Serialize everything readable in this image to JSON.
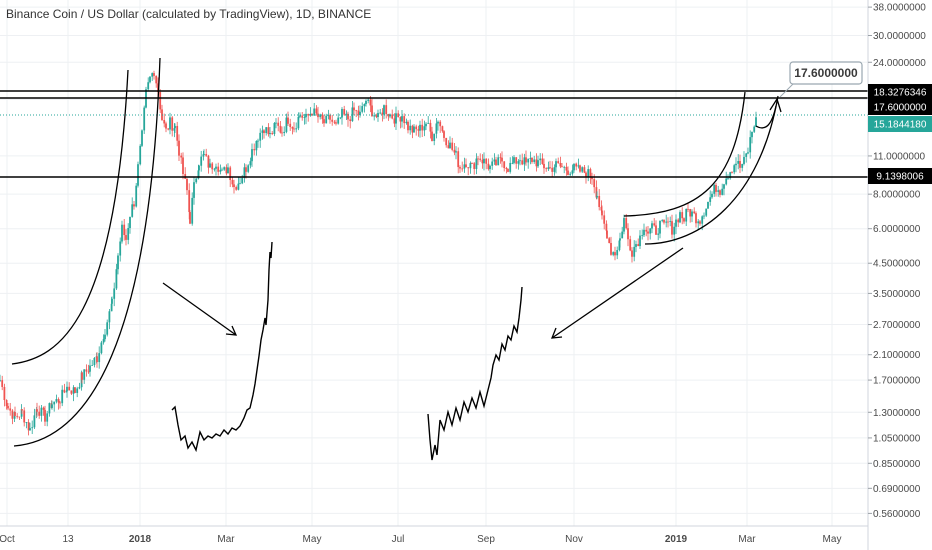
{
  "title": "Binance Coin / US Dollar (calculated by TradingView), 1D, BINANCE",
  "colors": {
    "up": "#26a69a",
    "down": "#ef5350",
    "grid": "#eef0f3",
    "axis_text": "#4a4a4a",
    "current_price_tag": "#26a69a",
    "level_tag": "#000000",
    "drawing": "#000000"
  },
  "chart_data": {
    "type": "candlestick",
    "title": "Binance Coin / US Dollar (calculated by TradingView), 1D, BINANCE",
    "yscale": "log",
    "ylim": [
      0.53,
      39
    ],
    "y_ticks": [
      "38.0000000",
      "30.0000000",
      "24.0000000",
      "17.6000000",
      "11.0000000",
      "8.0000000",
      "6.0000000",
      "4.5000000",
      "3.5000000",
      "2.7000000",
      "2.1000000",
      "1.7000000",
      "1.3000000",
      "1.0500000",
      "0.8500000",
      "0.6900000",
      "0.5600000"
    ],
    "x_ticks": [
      "Oct",
      "13",
      "2018",
      "Mar",
      "May",
      "Jul",
      "Sep",
      "Nov",
      "2019",
      "Mar",
      "May"
    ],
    "x_ticks_bold": [
      "2018",
      "2019"
    ],
    "price_closes": [
      [
        0,
        1.7
      ],
      [
        8,
        1.35
      ],
      [
        15,
        1.25
      ],
      [
        22,
        1.3
      ],
      [
        30,
        1.12
      ],
      [
        37,
        1.35
      ],
      [
        45,
        1.25
      ],
      [
        52,
        1.4
      ],
      [
        60,
        1.45
      ],
      [
        67,
        1.6
      ],
      [
        75,
        1.55
      ],
      [
        82,
        1.75
      ],
      [
        90,
        1.9
      ],
      [
        97,
        2.05
      ],
      [
        105,
        2.6
      ],
      [
        112,
        3.2
      ],
      [
        118,
        4.8
      ],
      [
        122,
        6.0
      ],
      [
        126,
        5.5
      ],
      [
        130,
        6.8
      ],
      [
        134,
        7.5
      ],
      [
        138,
        10.0
      ],
      [
        142,
        13.0
      ],
      [
        146,
        18.5
      ],
      [
        150,
        21.0
      ],
      [
        154,
        22.5
      ],
      [
        158,
        19.0
      ],
      [
        162,
        15.0
      ],
      [
        166,
        13.5
      ],
      [
        170,
        14.5
      ],
      [
        175,
        14.0
      ],
      [
        179,
        11.5
      ],
      [
        183,
        9.5
      ],
      [
        187,
        8.2
      ],
      [
        190,
        6.5
      ],
      [
        194,
        8.5
      ],
      [
        199,
        10.5
      ],
      [
        204,
        11.0
      ],
      [
        210,
        10.0
      ],
      [
        216,
        10.5
      ],
      [
        222,
        9.5
      ],
      [
        228,
        10.0
      ],
      [
        234,
        8.5
      ],
      [
        240,
        9.0
      ],
      [
        246,
        10.0
      ],
      [
        252,
        11.5
      ],
      [
        258,
        13.0
      ],
      [
        264,
        14.0
      ],
      [
        270,
        13.0
      ],
      [
        276,
        14.2
      ],
      [
        282,
        13.5
      ],
      [
        288,
        15.0
      ],
      [
        294,
        14.0
      ],
      [
        300,
        15.5
      ],
      [
        306,
        15.0
      ],
      [
        312,
        16.0
      ],
      [
        318,
        15.2
      ],
      [
        324,
        14.5
      ],
      [
        330,
        15.0
      ],
      [
        336,
        14.0
      ],
      [
        342,
        15.5
      ],
      [
        348,
        15.0
      ],
      [
        354,
        16.0
      ],
      [
        360,
        15.5
      ],
      [
        366,
        17.5
      ],
      [
        372,
        16.0
      ],
      [
        378,
        15.0
      ],
      [
        384,
        16.5
      ],
      [
        390,
        15.5
      ],
      [
        396,
        15.0
      ],
      [
        402,
        15.5
      ],
      [
        408,
        14.0
      ],
      [
        414,
        13.5
      ],
      [
        420,
        13.8
      ],
      [
        426,
        14.5
      ],
      [
        432,
        13.0
      ],
      [
        438,
        15.0
      ],
      [
        444,
        13.0
      ],
      [
        450,
        12.0
      ],
      [
        456,
        11.0
      ],
      [
        460,
        10.0
      ],
      [
        466,
        10.5
      ],
      [
        472,
        10.0
      ],
      [
        478,
        11.0
      ],
      [
        484,
        10.5
      ],
      [
        490,
        10.0
      ],
      [
        496,
        10.3
      ],
      [
        502,
        10.6
      ],
      [
        508,
        10.0
      ],
      [
        514,
        10.4
      ],
      [
        520,
        10.8
      ],
      [
        526,
        10.3
      ],
      [
        532,
        10.7
      ],
      [
        538,
        10.4
      ],
      [
        544,
        10.1
      ],
      [
        550,
        9.9
      ],
      [
        556,
        10.2
      ],
      [
        562,
        10.0
      ],
      [
        568,
        9.8
      ],
      [
        574,
        9.9
      ],
      [
        580,
        9.7
      ],
      [
        586,
        9.6
      ],
      [
        592,
        9.3
      ],
      [
        597,
        8.0
      ],
      [
        602,
        6.5
      ],
      [
        607,
        5.8
      ],
      [
        611,
        5.0
      ],
      [
        615,
        4.9
      ],
      [
        620,
        5.5
      ],
      [
        624,
        6.5
      ],
      [
        628,
        5.5
      ],
      [
        632,
        5.0
      ],
      [
        636,
        5.3
      ],
      [
        640,
        5.6
      ],
      [
        644,
        6.2
      ],
      [
        648,
        5.8
      ],
      [
        652,
        6.0
      ],
      [
        656,
        5.9
      ],
      [
        660,
        6.2
      ],
      [
        664,
        6.1
      ],
      [
        668,
        6.3
      ],
      [
        672,
        6.0
      ],
      [
        676,
        6.4
      ],
      [
        680,
        6.8
      ],
      [
        684,
        6.5
      ],
      [
        688,
        7.0
      ],
      [
        692,
        6.8
      ],
      [
        696,
        6.6
      ],
      [
        700,
        6.5
      ],
      [
        704,
        7.0
      ],
      [
        708,
        7.5
      ],
      [
        712,
        8.0
      ],
      [
        716,
        8.5
      ],
      [
        720,
        8.3
      ],
      [
        724,
        9.0
      ],
      [
        728,
        9.5
      ],
      [
        732,
        10.0
      ],
      [
        736,
        10.5
      ],
      [
        740,
        10.0
      ],
      [
        744,
        10.5
      ],
      [
        748,
        11.5
      ],
      [
        752,
        13.5
      ],
      [
        756,
        15.18
      ]
    ],
    "horizontal_levels": [
      {
        "label": "18.3276346",
        "value": 18.3276346
      },
      {
        "label": "17.6000000",
        "value": 17.6
      },
      {
        "label": "9.1398006",
        "value": 9.1398006
      }
    ],
    "current_price": {
      "label": "15.1844180",
      "value": 15.184418
    },
    "callout": {
      "label": "17.6000000",
      "value": 17.6
    }
  }
}
